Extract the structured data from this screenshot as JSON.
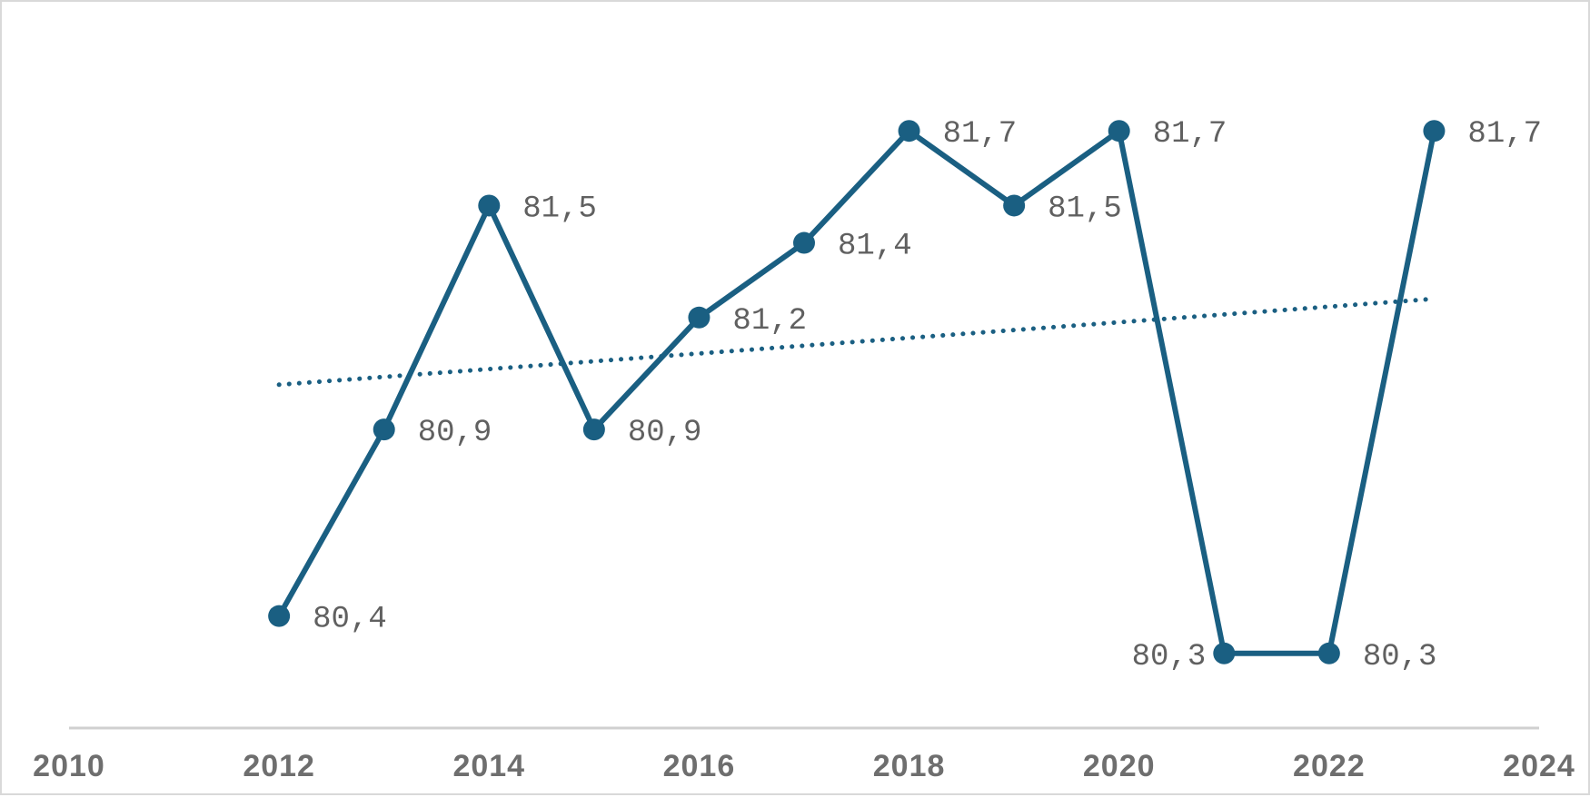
{
  "chart_data": {
    "type": "line",
    "title": "",
    "xlabel": "",
    "ylabel": "",
    "x": [
      2012,
      2013,
      2014,
      2015,
      2016,
      2017,
      2018,
      2019,
      2020,
      2021,
      2022,
      2023
    ],
    "series": [
      {
        "values": [
          80.4,
          80.9,
          81.5,
          80.9,
          81.2,
          81.4,
          81.7,
          81.5,
          81.7,
          80.3,
          80.3,
          81.7
        ],
        "labels": [
          "80,4",
          "80,9",
          "81,5",
          "80,9",
          "81,2",
          "81,4",
          "81,7",
          "81,5",
          "81,7",
          "80,3",
          "80,3",
          "81,7"
        ],
        "color": "#1a5f82",
        "marker": "circle"
      }
    ],
    "trendline": {
      "type": "linear",
      "style": "dotted",
      "color": "#1a5f82",
      "x": [
        2012,
        2023
      ],
      "y": [
        81.02,
        81.25
      ]
    },
    "xlim": [
      2010,
      2024
    ],
    "ylim": [
      80.1,
      81.9
    ],
    "x_ticks": [
      "2010",
      "2012",
      "2014",
      "2016",
      "2018",
      "2020",
      "2022",
      "2024"
    ],
    "y_axis_visible": false,
    "grid": false,
    "legend": "none",
    "colors": {
      "series": "#1a5f82",
      "axis_line": "#d0d0d0",
      "tick_text": "#6e6e6e",
      "label_text": "#606060",
      "border": "#d9d9d9"
    }
  }
}
